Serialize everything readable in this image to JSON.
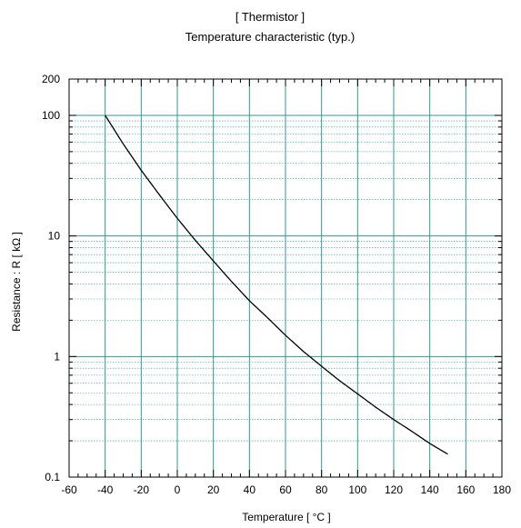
{
  "chart_data": {
    "type": "line",
    "title": "[ Thermistor ]",
    "subtitle": "Temperature characteristic  (typ.)",
    "xlabel": "Temperature  [  °C ]",
    "ylabel": "Resistance  :  R  [ kΩ ]",
    "xlim": [
      -60,
      180
    ],
    "ylim": [
      0.1,
      200
    ],
    "y_scale": "log",
    "grid": true,
    "x_ticks": [
      -60,
      -40,
      -20,
      0,
      20,
      40,
      60,
      80,
      100,
      120,
      140,
      160,
      180
    ],
    "y_ticks": [
      0.1,
      1,
      10,
      100,
      200
    ],
    "x_tick_labels": [
      "-60",
      "-40",
      "-20",
      "0",
      "20",
      "40",
      "60",
      "80",
      "100",
      "120",
      "140",
      "160",
      "180"
    ],
    "y_tick_labels": [
      "0.1",
      "1",
      "10",
      "100",
      "200"
    ],
    "series": [
      {
        "x": [
          -40,
          -30,
          -20,
          -10,
          0,
          10,
          20,
          30,
          40,
          50,
          60,
          70,
          80,
          90,
          100,
          110,
          120,
          130,
          140,
          150
        ],
        "values": [
          100,
          58,
          35,
          22,
          14,
          9.2,
          6.2,
          4.2,
          2.9,
          2.1,
          1.5,
          1.1,
          0.83,
          0.63,
          0.49,
          0.38,
          0.3,
          0.24,
          0.19,
          0.155
        ],
        "color": "#000000"
      }
    ],
    "grid_color": "#2f9a93"
  }
}
